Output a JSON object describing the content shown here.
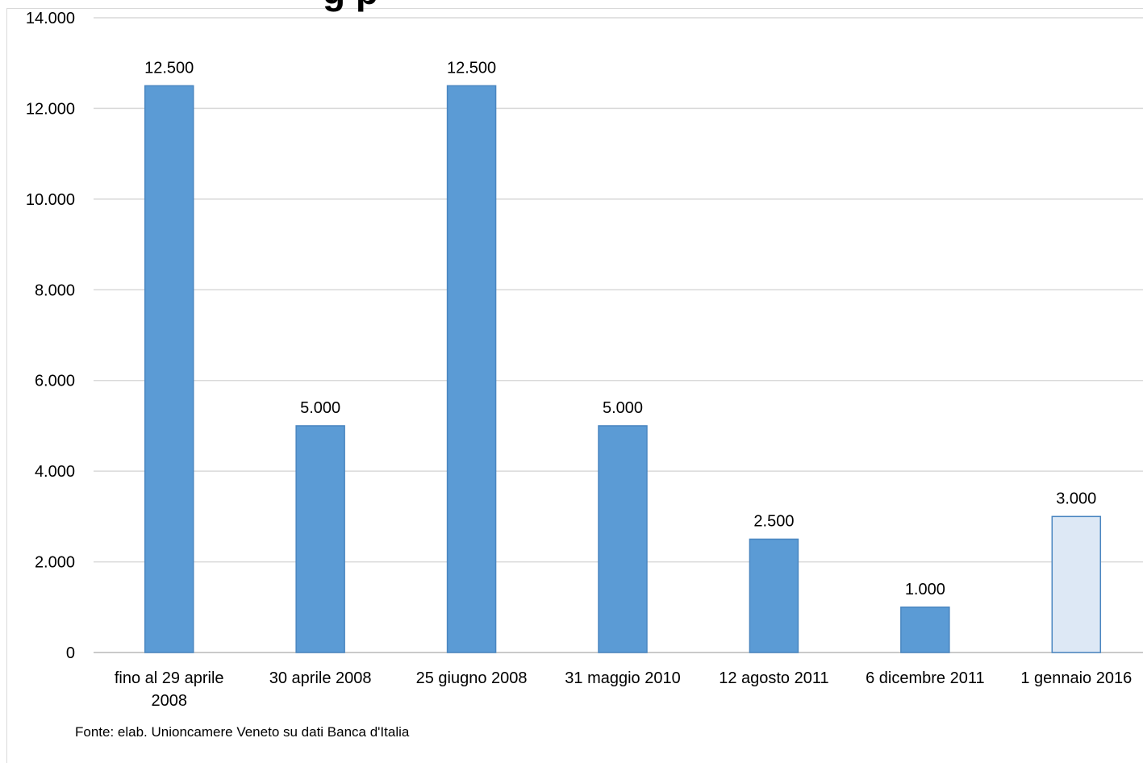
{
  "chart_data": {
    "type": "bar",
    "title_partial": "g p",
    "categories": [
      "fino al 29 aprile 2008",
      "30 aprile 2008",
      "25 giugno 2008",
      "31 maggio 2010",
      "12 agosto 2011",
      "6 dicembre 2011",
      "1 gennaio 2016"
    ],
    "category_lines": [
      [
        "fino al 29 aprile",
        "2008"
      ],
      [
        "30 aprile 2008"
      ],
      [
        "25 giugno 2008"
      ],
      [
        "31 maggio 2010"
      ],
      [
        "12 agosto 2011"
      ],
      [
        "6 dicembre 2011"
      ],
      [
        "1 gennaio 2016"
      ]
    ],
    "values": [
      12500,
      5000,
      12500,
      5000,
      2500,
      1000,
      3000
    ],
    "value_labels": [
      "12.500",
      "5.000",
      "12.500",
      "5.000",
      "2.500",
      "1.000",
      "3.000"
    ],
    "yticks": [
      0,
      2000,
      4000,
      6000,
      8000,
      10000,
      12000,
      14000
    ],
    "ytick_labels": [
      "0",
      "2.000",
      "4.000",
      "6.000",
      "8.000",
      "10.000",
      "12.000",
      "14.000"
    ],
    "ylim": [
      0,
      14000
    ],
    "grid": true,
    "colors": {
      "bar": "#5b9bd5",
      "bar_border": "#4a86c0",
      "bar_highlight": "#dde8f5",
      "grid": "#d9d9d9"
    },
    "highlight_index": 6
  },
  "source_note": "Fonte: elab. Unioncamere Veneto su dati Banca d'Italia"
}
